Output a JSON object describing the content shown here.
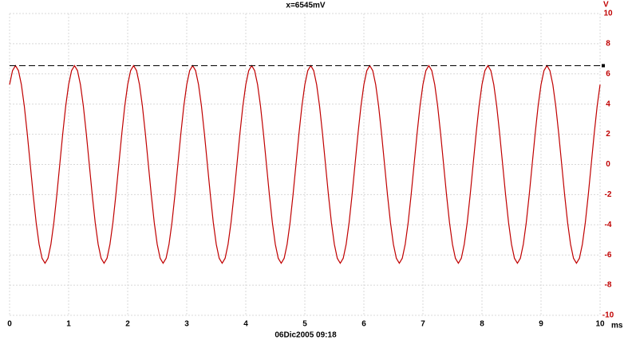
{
  "chart_data": {
    "type": "line",
    "title": "x=6545mV",
    "footer": "06Dic2005  09:18",
    "y_unit": "V",
    "x_unit": "ms",
    "cursor": {
      "value": 6.545,
      "color": "#000000"
    },
    "grid": true,
    "xlim": [
      0,
      10
    ],
    "xticks": [
      0,
      1,
      2,
      3,
      4,
      5,
      6,
      7,
      8,
      9,
      10
    ],
    "ylim": [
      -10,
      10
    ],
    "yticks": [
      -10,
      -8,
      -6,
      -4,
      -2,
      0,
      2,
      4,
      6,
      8,
      10
    ],
    "x": [
      0,
      0.05,
      0.1,
      0.15,
      0.2,
      0.25,
      0.3,
      0.35,
      0.4,
      0.45,
      0.5,
      0.55,
      0.6,
      0.65,
      0.7,
      0.75,
      0.8,
      0.85,
      0.9,
      0.95,
      1,
      1.05,
      1.1,
      1.15,
      1.2,
      1.25,
      1.3,
      1.35,
      1.4,
      1.45,
      1.5,
      1.55,
      1.6,
      1.65,
      1.7,
      1.75,
      1.8,
      1.85,
      1.9,
      1.95,
      2,
      2.05,
      2.1,
      2.15,
      2.2,
      2.25,
      2.3,
      2.35,
      2.4,
      2.45,
      2.5,
      2.55,
      2.6,
      2.65,
      2.7,
      2.75,
      2.8,
      2.85,
      2.9,
      2.95,
      3,
      3.05,
      3.1,
      3.15,
      3.2,
      3.25,
      3.3,
      3.35,
      3.4,
      3.45,
      3.5,
      3.55,
      3.6,
      3.65,
      3.7,
      3.75,
      3.8,
      3.85,
      3.9,
      3.95,
      4,
      4.05,
      4.1,
      4.15,
      4.2,
      4.25,
      4.3,
      4.35,
      4.4,
      4.45,
      4.5,
      4.55,
      4.6,
      4.65,
      4.7,
      4.75,
      4.8,
      4.85,
      4.9,
      4.95,
      5,
      5.05,
      5.1,
      5.15,
      5.2,
      5.25,
      5.3,
      5.35,
      5.4,
      5.45,
      5.5,
      5.55,
      5.6,
      5.65,
      5.7,
      5.75,
      5.8,
      5.85,
      5.9,
      5.95,
      6,
      6.05,
      6.1,
      6.15,
      6.2,
      6.25,
      6.3,
      6.35,
      6.4,
      6.45,
      6.5,
      6.55,
      6.6,
      6.65,
      6.7,
      6.75,
      6.8,
      6.85,
      6.9,
      6.95,
      7,
      7.05,
      7.1,
      7.15,
      7.2,
      7.25,
      7.3,
      7.35,
      7.4,
      7.45,
      7.5,
      7.55,
      7.6,
      7.65,
      7.7,
      7.75,
      7.8,
      7.85,
      7.9,
      7.95,
      8,
      8.05,
      8.1,
      8.15,
      8.2,
      8.25,
      8.3,
      8.35,
      8.4,
      8.45,
      8.5,
      8.55,
      8.6,
      8.65,
      8.7,
      8.75,
      8.8,
      8.85,
      8.9,
      8.95,
      9,
      9.05,
      9.1,
      9.15,
      9.2,
      9.25,
      9.3,
      9.35,
      9.4,
      9.45,
      9.5,
      9.55,
      9.6,
      9.65,
      9.7,
      9.75,
      9.8,
      9.85,
      9.9,
      9.95,
      10
    ],
    "series": [
      {
        "color": "#c00000",
        "values": [
          5.29,
          6.22,
          6.545,
          6.22,
          5.29,
          3.85,
          2.02,
          0,
          -2.02,
          -3.85,
          -5.29,
          -6.22,
          -6.545,
          -6.22,
          -5.29,
          -3.85,
          -2.02,
          0,
          2.02,
          3.85,
          5.29,
          6.22,
          6.545,
          6.22,
          5.29,
          3.85,
          2.02,
          0,
          -2.02,
          -3.85,
          -5.29,
          -6.22,
          -6.545,
          -6.22,
          -5.29,
          -3.85,
          -2.02,
          0,
          2.02,
          3.85,
          5.29,
          6.22,
          6.545,
          6.22,
          5.29,
          3.85,
          2.02,
          0,
          -2.02,
          -3.85,
          -5.29,
          -6.22,
          -6.545,
          -6.22,
          -5.29,
          -3.85,
          -2.02,
          0,
          2.02,
          3.85,
          5.29,
          6.22,
          6.545,
          6.22,
          5.29,
          3.85,
          2.02,
          0,
          -2.02,
          -3.85,
          -5.29,
          -6.22,
          -6.545,
          -6.22,
          -5.29,
          -3.85,
          -2.02,
          0,
          2.02,
          3.85,
          5.29,
          6.22,
          6.545,
          6.22,
          5.29,
          3.85,
          2.02,
          0,
          -2.02,
          -3.85,
          -5.29,
          -6.22,
          -6.545,
          -6.22,
          -5.29,
          -3.85,
          -2.02,
          0,
          2.02,
          3.85,
          5.29,
          6.22,
          6.545,
          6.22,
          5.29,
          3.85,
          2.02,
          0,
          -2.02,
          -3.85,
          -5.29,
          -6.22,
          -6.545,
          -6.22,
          -5.29,
          -3.85,
          -2.02,
          0,
          2.02,
          3.85,
          5.29,
          6.22,
          6.545,
          6.22,
          5.29,
          3.85,
          2.02,
          0,
          -2.02,
          -3.85,
          -5.29,
          -6.22,
          -6.545,
          -6.22,
          -5.29,
          -3.85,
          -2.02,
          0,
          2.02,
          3.85,
          5.29,
          6.22,
          6.545,
          6.22,
          5.29,
          3.85,
          2.02,
          0,
          -2.02,
          -3.85,
          -5.29,
          -6.22,
          -6.545,
          -6.22,
          -5.29,
          -3.85,
          -2.02,
          0,
          2.02,
          3.85,
          5.29,
          6.22,
          6.545,
          6.22,
          5.29,
          3.85,
          2.02,
          0,
          -2.02,
          -3.85,
          -5.29,
          -6.22,
          -6.545,
          -6.22,
          -5.29,
          -3.85,
          -2.02,
          0,
          2.02,
          3.85,
          5.29,
          6.22,
          6.545,
          6.22,
          5.29,
          3.85,
          2.02,
          0,
          -2.02,
          -3.85,
          -5.29,
          -6.22,
          -6.545,
          -6.22,
          -5.29,
          -3.85,
          -2.02,
          0,
          2.02,
          3.85,
          5.29
        ]
      }
    ]
  }
}
